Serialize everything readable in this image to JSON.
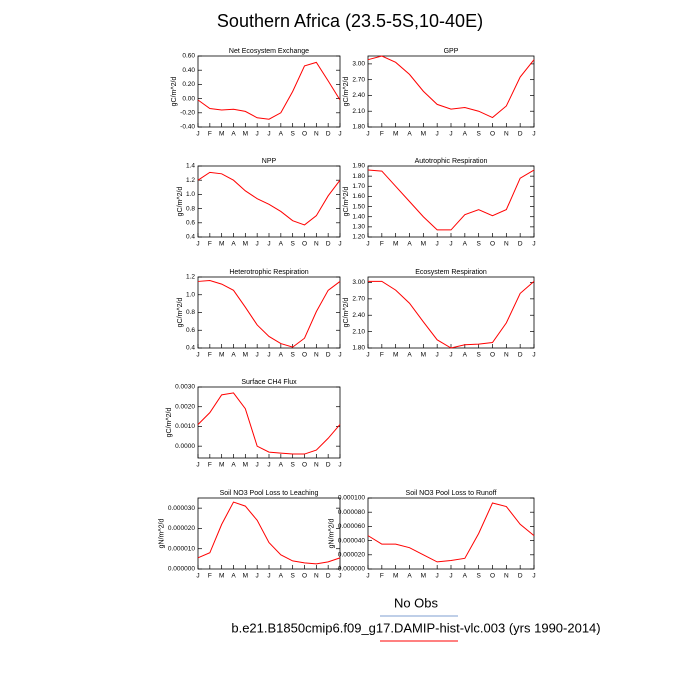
{
  "title": "Southern Africa (23.5-5S,10-40E)",
  "legend": [
    {
      "name": "No Obs",
      "color": "#7f9fd0"
    },
    {
      "name": "b.e21.B1850cmip6.f09_g17.DAMIP-hist-vlc.003 (yrs 1990-2014)",
      "color": "#ff0000"
    }
  ],
  "chart_data": [
    {
      "type": "line",
      "title": "Net Ecosystem Exchange",
      "y_label": "gC/m^2/d",
      "categories": [
        "J",
        "F",
        "M",
        "A",
        "M",
        "J",
        "J",
        "A",
        "S",
        "O",
        "N",
        "D",
        "J"
      ],
      "series": [
        {
          "color": "#ff0000",
          "values": [
            -0.02,
            -0.14,
            -0.16,
            -0.15,
            -0.18,
            -0.27,
            -0.29,
            -0.2,
            0.1,
            0.46,
            0.51,
            0.25,
            -0.02
          ]
        }
      ],
      "ylim": [
        -0.4,
        0.6
      ],
      "yticks": [
        {
          "value": -0.4,
          "label": "-0.40"
        },
        {
          "value": -0.2,
          "label": "-0.20"
        },
        {
          "value": 0,
          "label": "0.00"
        },
        {
          "value": 0.2,
          "label": "0.20"
        },
        {
          "value": 0.4,
          "label": "0.40"
        },
        {
          "value": 0.6,
          "label": "0.60"
        }
      ]
    },
    {
      "type": "line",
      "title": "GPP",
      "y_label": "gC/m^2/d",
      "categories": [
        "J",
        "F",
        "M",
        "A",
        "M",
        "J",
        "J",
        "A",
        "S",
        "O",
        "N",
        "D",
        "J"
      ],
      "series": [
        {
          "color": "#ff0000",
          "values": [
            3.08,
            3.15,
            3.03,
            2.8,
            2.48,
            2.23,
            2.14,
            2.17,
            2.1,
            1.98,
            2.2,
            2.75,
            3.08
          ]
        }
      ],
      "ylim": [
        1.8,
        3.15
      ],
      "yticks": [
        {
          "value": 1.8,
          "label": "1.80"
        },
        {
          "value": 2.1,
          "label": "2.10"
        },
        {
          "value": 2.4,
          "label": "2.40"
        },
        {
          "value": 2.7,
          "label": "2.70"
        },
        {
          "value": 3,
          "label": "3.00"
        }
      ]
    },
    {
      "type": "line",
      "title": "NPP",
      "y_label": "gC/m^2/d",
      "categories": [
        "J",
        "F",
        "M",
        "A",
        "M",
        "J",
        "J",
        "A",
        "S",
        "O",
        "N",
        "D",
        "J"
      ],
      "series": [
        {
          "color": "#ff0000",
          "values": [
            1.2,
            1.31,
            1.29,
            1.2,
            1.05,
            0.94,
            0.86,
            0.76,
            0.63,
            0.57,
            0.7,
            0.98,
            1.2
          ]
        }
      ],
      "ylim": [
        0.4,
        1.4
      ],
      "yticks": [
        0.4,
        0.6,
        0.8,
        {
          "value": 1,
          "label": "1.0"
        },
        1.2,
        1.4
      ]
    },
    {
      "type": "line",
      "title": "Autotrophic Respiration",
      "y_label": "gC/m^2/d",
      "categories": [
        "J",
        "F",
        "M",
        "A",
        "M",
        "J",
        "J",
        "A",
        "S",
        "O",
        "N",
        "D",
        "J"
      ],
      "series": [
        {
          "color": "#ff0000",
          "values": [
            1.86,
            1.85,
            1.7,
            1.55,
            1.4,
            1.27,
            1.27,
            1.42,
            1.47,
            1.41,
            1.47,
            1.78,
            1.86
          ]
        }
      ],
      "ylim": [
        1.2,
        1.9
      ],
      "yticks": [
        {
          "value": 1.2,
          "label": "1.20"
        },
        {
          "value": 1.3,
          "label": "1.30"
        },
        {
          "value": 1.4,
          "label": "1.40"
        },
        {
          "value": 1.5,
          "label": "1.50"
        },
        {
          "value": 1.6,
          "label": "1.60"
        },
        {
          "value": 1.7,
          "label": "1.70"
        },
        {
          "value": 1.8,
          "label": "1.80"
        },
        {
          "value": 1.9,
          "label": "1.90"
        }
      ]
    },
    {
      "type": "line",
      "title": "Heterotrophic Respiration",
      "y_label": "gC/m^2/d",
      "categories": [
        "J",
        "F",
        "M",
        "A",
        "M",
        "J",
        "J",
        "A",
        "S",
        "O",
        "N",
        "D",
        "J"
      ],
      "series": [
        {
          "color": "#ff0000",
          "values": [
            1.15,
            1.16,
            1.12,
            1.05,
            0.86,
            0.66,
            0.53,
            0.45,
            0.41,
            0.51,
            0.81,
            1.05,
            1.15
          ]
        }
      ],
      "ylim": [
        0.4,
        1.2
      ],
      "yticks": [
        0.4,
        0.6,
        0.8,
        {
          "value": 1,
          "label": "1.0"
        },
        1.2
      ]
    },
    {
      "type": "line",
      "title": "Ecosystem Respiration",
      "y_label": "gC/m^2/d",
      "categories": [
        "J",
        "F",
        "M",
        "A",
        "M",
        "J",
        "J",
        "A",
        "S",
        "O",
        "N",
        "D",
        "J"
      ],
      "series": [
        {
          "color": "#ff0000",
          "values": [
            3.02,
            3.02,
            2.86,
            2.62,
            2.28,
            1.95,
            1.8,
            1.86,
            1.87,
            1.9,
            2.26,
            2.8,
            3.02
          ]
        }
      ],
      "ylim": [
        1.8,
        3.1
      ],
      "yticks": [
        {
          "value": 1.8,
          "label": "1.80"
        },
        {
          "value": 2.1,
          "label": "2.10"
        },
        {
          "value": 2.4,
          "label": "2.40"
        },
        {
          "value": 2.7,
          "label": "2.70"
        },
        {
          "value": 3,
          "label": "3.00"
        }
      ]
    },
    {
      "type": "line",
      "title": "Surface CH4 Flux",
      "y_label": "gC/m^2/d",
      "categories": [
        "J",
        "F",
        "M",
        "A",
        "M",
        "J",
        "J",
        "A",
        "S",
        "O",
        "N",
        "D",
        "J"
      ],
      "series": [
        {
          "color": "#ff0000",
          "values": [
            0.0011,
            0.0017,
            0.0026,
            0.0027,
            0.0019,
            0.0,
            -0.0003,
            -0.00035,
            -0.0004,
            -0.0004,
            -0.0002,
            0.0004,
            0.0011
          ]
        }
      ],
      "ylim": [
        -0.0006,
        0.003
      ],
      "yticks": [
        {
          "value": 0,
          "label": "0.0000"
        },
        {
          "value": 0.001,
          "label": "0.0010"
        },
        {
          "value": 0.002,
          "label": "0.0020"
        },
        {
          "value": 0.003,
          "label": "0.0030"
        }
      ]
    },
    {
      "type": "line",
      "title": "Soil NO3 Pool Loss to Leaching",
      "y_label": "gN/m^2/d",
      "categories": [
        "J",
        "F",
        "M",
        "A",
        "M",
        "J",
        "J",
        "A",
        "S",
        "O",
        "N",
        "D",
        "J"
      ],
      "series": [
        {
          "color": "#ff0000",
          "values": [
            5.5e-06,
            8e-06,
            2.2e-05,
            3.3e-05,
            3.1e-05,
            2.4e-05,
            1.3e-05,
            7e-06,
            4e-06,
            3e-06,
            2.5e-06,
            3.5e-06,
            5.5e-06
          ]
        }
      ],
      "ylim": [
        0,
        3.5e-05
      ],
      "yticks": [
        {
          "value": 0,
          "label": "0.000000"
        },
        {
          "value": 1e-05,
          "label": "0.000010"
        },
        {
          "value": 2e-05,
          "label": "0.000020"
        },
        {
          "value": 3e-05,
          "label": "0.000030"
        }
      ]
    },
    {
      "type": "line",
      "title": "Soil NO3 Pool Loss to Runoff",
      "y_label": "gN/m^2/d",
      "categories": [
        "J",
        "F",
        "M",
        "A",
        "M",
        "J",
        "J",
        "A",
        "S",
        "O",
        "N",
        "D",
        "J"
      ],
      "series": [
        {
          "color": "#ff0000",
          "values": [
            4.7e-05,
            3.5e-05,
            3.5e-05,
            3e-05,
            2e-05,
            1e-05,
            1.2e-05,
            1.5e-05,
            5e-05,
            9.3e-05,
            8.8e-05,
            6.3e-05,
            4.7e-05
          ]
        }
      ],
      "ylim": [
        0,
        0.0001
      ],
      "yticks": [
        {
          "value": 0,
          "label": "0.000000"
        },
        {
          "value": 2e-05,
          "label": "0.000020"
        },
        {
          "value": 4e-05,
          "label": "0.000040"
        },
        {
          "value": 6e-05,
          "label": "0.000060"
        },
        {
          "value": 8e-05,
          "label": "0.000080"
        },
        {
          "value": 0.0001,
          "label": "0.000100"
        }
      ]
    }
  ]
}
